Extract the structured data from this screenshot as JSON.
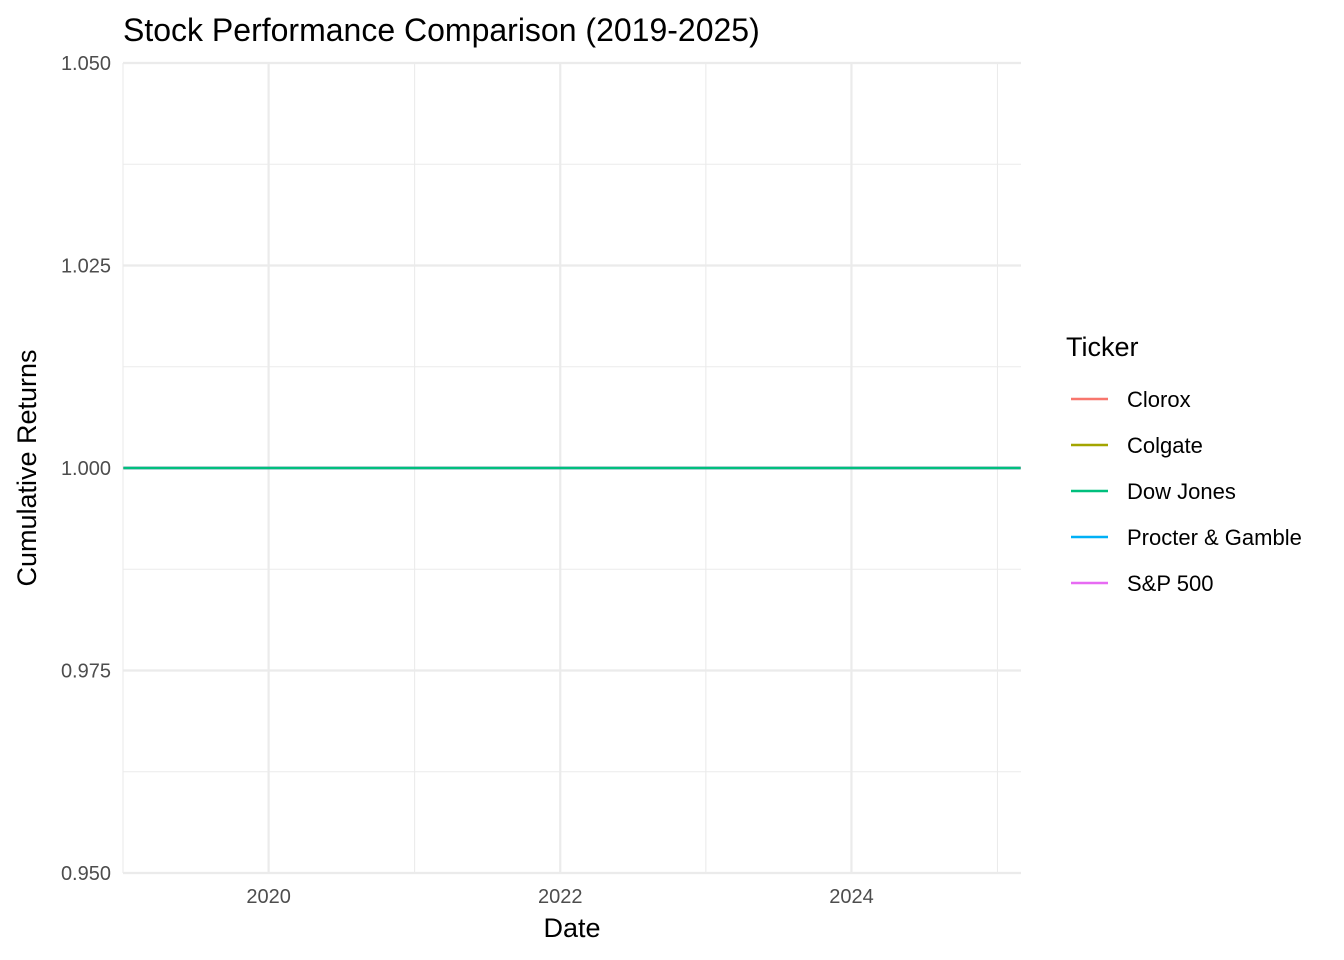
{
  "chart_data": {
    "type": "line",
    "title": "Stock Performance Comparison (2019-2025)",
    "xlabel": "Date",
    "ylabel": "Cumulative Returns",
    "x_axis_type": "date",
    "xlim": [
      "2019-01-01",
      "2025-03-01"
    ],
    "ylim": [
      0.95,
      1.05
    ],
    "x_ticks": [
      {
        "value": "2020-01-01",
        "label": "2020"
      },
      {
        "value": "2022-01-01",
        "label": "2022"
      },
      {
        "value": "2024-01-01",
        "label": "2024"
      }
    ],
    "x_minor_ticks": [
      "2019-01-01",
      "2021-01-01",
      "2023-01-01",
      "2025-01-01"
    ],
    "y_ticks": [
      {
        "value": 0.95,
        "label": "0.950"
      },
      {
        "value": 0.975,
        "label": "0.975"
      },
      {
        "value": 1.0,
        "label": "1.000"
      },
      {
        "value": 1.025,
        "label": "1.025"
      },
      {
        "value": 1.05,
        "label": "1.050"
      }
    ],
    "y_minor_ticks": [
      0.9625,
      0.9875,
      1.0125,
      1.0375
    ],
    "grid": true,
    "legend": {
      "title": "Ticker",
      "position": "right"
    },
    "series": [
      {
        "name": "Clorox",
        "color": "#F8766D",
        "x": [
          "2019-01-02",
          "2025-02-28"
        ],
        "y": [
          1.0,
          1.0
        ]
      },
      {
        "name": "Colgate",
        "color": "#A3A500",
        "x": [
          "2019-01-02",
          "2025-02-28"
        ],
        "y": [
          1.0,
          1.0
        ]
      },
      {
        "name": "Dow Jones",
        "color": "#00BF7D",
        "x": [
          "2019-01-02",
          "2025-02-28"
        ],
        "y": [
          1.0,
          1.0
        ]
      },
      {
        "name": "Procter & Gamble",
        "color": "#00B0F6",
        "x": [
          "2019-01-02",
          "2025-02-28"
        ],
        "y": [
          1.0,
          1.0
        ]
      },
      {
        "name": "S&P 500",
        "color": "#E76BF3",
        "x": [
          "2019-01-02",
          "2025-02-28"
        ],
        "y": [
          1.0,
          1.0
        ]
      }
    ]
  }
}
